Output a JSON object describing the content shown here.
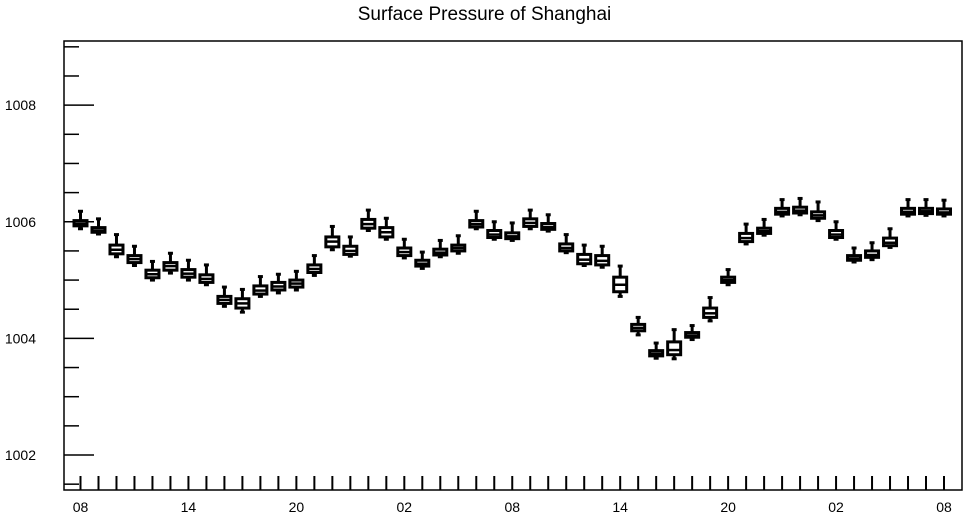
{
  "chart_data": {
    "type": "box",
    "title": "Surface Pressure of Shanghai",
    "xlabel": "",
    "ylabel": "",
    "ylim": [
      1001.4,
      1009.1
    ],
    "y_major_ticks": [
      1002,
      1004,
      1006,
      1008
    ],
    "y_minor_step": 0.5,
    "x_tick_labels": [
      "08",
      "14",
      "20",
      "02",
      "08",
      "14",
      "20",
      "02",
      "08"
    ],
    "x_label_every": 6,
    "grid": false,
    "hour_start": 8,
    "hour_step": 1,
    "boxes": [
      {
        "hour": 8,
        "min": 1005.88,
        "q1": 1005.93,
        "median": 1005.97,
        "q3": 1006.02,
        "max": 1006.18
      },
      {
        "hour": 9,
        "min": 1005.79,
        "q1": 1005.82,
        "median": 1005.85,
        "q3": 1005.9,
        "max": 1006.05
      },
      {
        "hour": 10,
        "min": 1005.4,
        "q1": 1005.45,
        "median": 1005.52,
        "q3": 1005.6,
        "max": 1005.78
      },
      {
        "hour": 11,
        "min": 1005.25,
        "q1": 1005.3,
        "median": 1005.36,
        "q3": 1005.42,
        "max": 1005.58
      },
      {
        "hour": 12,
        "min": 1005.0,
        "q1": 1005.04,
        "median": 1005.1,
        "q3": 1005.17,
        "max": 1005.32
      },
      {
        "hour": 13,
        "min": 1005.12,
        "q1": 1005.17,
        "median": 1005.24,
        "q3": 1005.3,
        "max": 1005.46
      },
      {
        "hour": 14,
        "min": 1005.0,
        "q1": 1005.05,
        "median": 1005.11,
        "q3": 1005.18,
        "max": 1005.34
      },
      {
        "hour": 15,
        "min": 1004.92,
        "q1": 1004.96,
        "median": 1005.02,
        "q3": 1005.09,
        "max": 1005.26
      },
      {
        "hour": 16,
        "min": 1004.55,
        "q1": 1004.6,
        "median": 1004.66,
        "q3": 1004.72,
        "max": 1004.88
      },
      {
        "hour": 17,
        "min": 1004.45,
        "q1": 1004.52,
        "median": 1004.6,
        "q3": 1004.68,
        "max": 1004.84
      },
      {
        "hour": 18,
        "min": 1004.72,
        "q1": 1004.76,
        "median": 1004.82,
        "q3": 1004.9,
        "max": 1005.06
      },
      {
        "hour": 19,
        "min": 1004.78,
        "q1": 1004.83,
        "median": 1004.89,
        "q3": 1004.96,
        "max": 1005.1
      },
      {
        "hour": 20,
        "min": 1004.83,
        "q1": 1004.88,
        "median": 1004.94,
        "q3": 1005.0,
        "max": 1005.15
      },
      {
        "hour": 21,
        "min": 1005.08,
        "q1": 1005.13,
        "median": 1005.19,
        "q3": 1005.26,
        "max": 1005.42
      },
      {
        "hour": 22,
        "min": 1005.52,
        "q1": 1005.57,
        "median": 1005.66,
        "q3": 1005.74,
        "max": 1005.92
      },
      {
        "hour": 23,
        "min": 1005.41,
        "q1": 1005.44,
        "median": 1005.5,
        "q3": 1005.58,
        "max": 1005.74
      },
      {
        "hour": 0,
        "min": 1005.85,
        "q1": 1005.89,
        "median": 1005.96,
        "q3": 1006.04,
        "max": 1006.2
      },
      {
        "hour": 1,
        "min": 1005.7,
        "q1": 1005.74,
        "median": 1005.82,
        "q3": 1005.9,
        "max": 1006.06
      },
      {
        "hour": 2,
        "min": 1005.38,
        "q1": 1005.42,
        "median": 1005.48,
        "q3": 1005.55,
        "max": 1005.7
      },
      {
        "hour": 3,
        "min": 1005.2,
        "q1": 1005.24,
        "median": 1005.28,
        "q3": 1005.34,
        "max": 1005.48
      },
      {
        "hour": 4,
        "min": 1005.4,
        "q1": 1005.43,
        "median": 1005.47,
        "q3": 1005.53,
        "max": 1005.68
      },
      {
        "hour": 5,
        "min": 1005.46,
        "q1": 1005.5,
        "median": 1005.55,
        "q3": 1005.6,
        "max": 1005.76
      },
      {
        "hour": 6,
        "min": 1005.88,
        "q1": 1005.91,
        "median": 1005.96,
        "q3": 1006.02,
        "max": 1006.18
      },
      {
        "hour": 7,
        "min": 1005.7,
        "q1": 1005.73,
        "median": 1005.78,
        "q3": 1005.85,
        "max": 1006.0
      },
      {
        "hour": 8,
        "min": 1005.68,
        "q1": 1005.71,
        "median": 1005.75,
        "q3": 1005.81,
        "max": 1005.98
      },
      {
        "hour": 9,
        "min": 1005.88,
        "q1": 1005.92,
        "median": 1005.98,
        "q3": 1006.05,
        "max": 1006.2
      },
      {
        "hour": 10,
        "min": 1005.84,
        "q1": 1005.87,
        "median": 1005.91,
        "q3": 1005.97,
        "max": 1006.12
      },
      {
        "hour": 11,
        "min": 1005.47,
        "q1": 1005.5,
        "median": 1005.55,
        "q3": 1005.62,
        "max": 1005.78
      },
      {
        "hour": 12,
        "min": 1005.25,
        "q1": 1005.28,
        "median": 1005.35,
        "q3": 1005.44,
        "max": 1005.6
      },
      {
        "hour": 13,
        "min": 1005.22,
        "q1": 1005.26,
        "median": 1005.33,
        "q3": 1005.42,
        "max": 1005.58
      },
      {
        "hour": 14,
        "min": 1004.72,
        "q1": 1004.8,
        "median": 1004.92,
        "q3": 1005.05,
        "max": 1005.24
      },
      {
        "hour": 15,
        "min": 1004.06,
        "q1": 1004.13,
        "median": 1004.18,
        "q3": 1004.24,
        "max": 1004.36
      },
      {
        "hour": 16,
        "min": 1003.66,
        "q1": 1003.7,
        "median": 1003.74,
        "q3": 1003.79,
        "max": 1003.92
      },
      {
        "hour": 17,
        "min": 1003.65,
        "q1": 1003.72,
        "median": 1003.8,
        "q3": 1003.94,
        "max": 1004.15
      },
      {
        "hour": 18,
        "min": 1003.98,
        "q1": 1004.02,
        "median": 1004.05,
        "q3": 1004.1,
        "max": 1004.22
      },
      {
        "hour": 19,
        "min": 1004.3,
        "q1": 1004.36,
        "median": 1004.43,
        "q3": 1004.52,
        "max": 1004.7
      },
      {
        "hour": 20,
        "min": 1004.92,
        "q1": 1004.96,
        "median": 1005.0,
        "q3": 1005.05,
        "max": 1005.18
      },
      {
        "hour": 21,
        "min": 1005.62,
        "q1": 1005.66,
        "median": 1005.72,
        "q3": 1005.8,
        "max": 1005.96
      },
      {
        "hour": 22,
        "min": 1005.77,
        "q1": 1005.8,
        "median": 1005.84,
        "q3": 1005.89,
        "max": 1006.04
      },
      {
        "hour": 23,
        "min": 1006.1,
        "q1": 1006.13,
        "median": 1006.17,
        "q3": 1006.23,
        "max": 1006.38
      },
      {
        "hour": 0,
        "min": 1006.12,
        "q1": 1006.15,
        "median": 1006.19,
        "q3": 1006.25,
        "max": 1006.4
      },
      {
        "hour": 1,
        "min": 1006.02,
        "q1": 1006.06,
        "median": 1006.11,
        "q3": 1006.17,
        "max": 1006.34
      },
      {
        "hour": 2,
        "min": 1005.7,
        "q1": 1005.73,
        "median": 1005.78,
        "q3": 1005.85,
        "max": 1006.0
      },
      {
        "hour": 3,
        "min": 1005.31,
        "q1": 1005.34,
        "median": 1005.37,
        "q3": 1005.42,
        "max": 1005.55
      },
      {
        "hour": 4,
        "min": 1005.35,
        "q1": 1005.39,
        "median": 1005.43,
        "q3": 1005.5,
        "max": 1005.64
      },
      {
        "hour": 5,
        "min": 1005.56,
        "q1": 1005.59,
        "median": 1005.64,
        "q3": 1005.72,
        "max": 1005.88
      },
      {
        "hour": 6,
        "min": 1006.1,
        "q1": 1006.13,
        "median": 1006.17,
        "q3": 1006.23,
        "max": 1006.38
      },
      {
        "hour": 7,
        "min": 1006.11,
        "q1": 1006.14,
        "median": 1006.18,
        "q3": 1006.23,
        "max": 1006.38
      },
      {
        "hour": 8,
        "min": 1006.1,
        "q1": 1006.13,
        "median": 1006.16,
        "q3": 1006.22,
        "max": 1006.37
      }
    ]
  }
}
